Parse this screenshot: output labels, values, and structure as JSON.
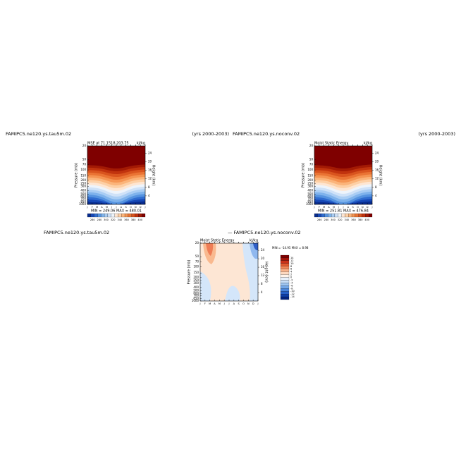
{
  "panels": [
    {
      "left_label": "FAMIPC5.ne120.ys.tau5m.02",
      "right_label": "(yrs 2000-2003)",
      "title": "MSE at 71.1518,203.75",
      "units": "kJ/kg",
      "stats": "MIN = 249.06  MAX = 480.01",
      "colorbar_labels": [
        "260",
        "280",
        "300",
        "320",
        "340",
        "360",
        "380",
        "400"
      ]
    },
    {
      "left_label": "FAMIPC5.ne120.ys.noconv.02",
      "right_label": "(yrs 2000-2003)",
      "title": "Moist Static Energy",
      "units": "kJ/kg",
      "stats": "MIN = 251.81  MAX = 476.84",
      "colorbar_labels": [
        "260",
        "280",
        "300",
        "320",
        "340",
        "360",
        "380",
        "400"
      ]
    },
    {
      "left_label": "FAMIPC5.ne120.ys.tau5m.02",
      "right_label": "— FAMIPC5.ne120.ys.noconv.02",
      "title": "Moist Static Energy",
      "units": "kJ/kg",
      "stats": "MIN = -14.95  MAX =   8.98",
      "colorbar_labels": [
        "14",
        "12",
        "10",
        "8",
        "6",
        "4",
        "2",
        "0",
        "-2",
        "-4",
        "-6",
        "-8",
        "-10",
        "-12",
        "-14"
      ]
    }
  ],
  "axes": {
    "y_label": "Pressure (mb)",
    "y2_label": "Height (km)",
    "pressure_ticks": [
      20,
      50,
      70,
      100,
      150,
      200,
      250,
      300,
      400,
      500,
      600,
      700,
      850,
      1000
    ],
    "height_ticks": [
      24,
      20,
      16,
      12,
      8,
      4
    ],
    "months": [
      "J",
      "F",
      "M",
      "A",
      "M",
      "J",
      "J",
      "A",
      "S",
      "O",
      "N",
      "D",
      "J"
    ]
  }
}
